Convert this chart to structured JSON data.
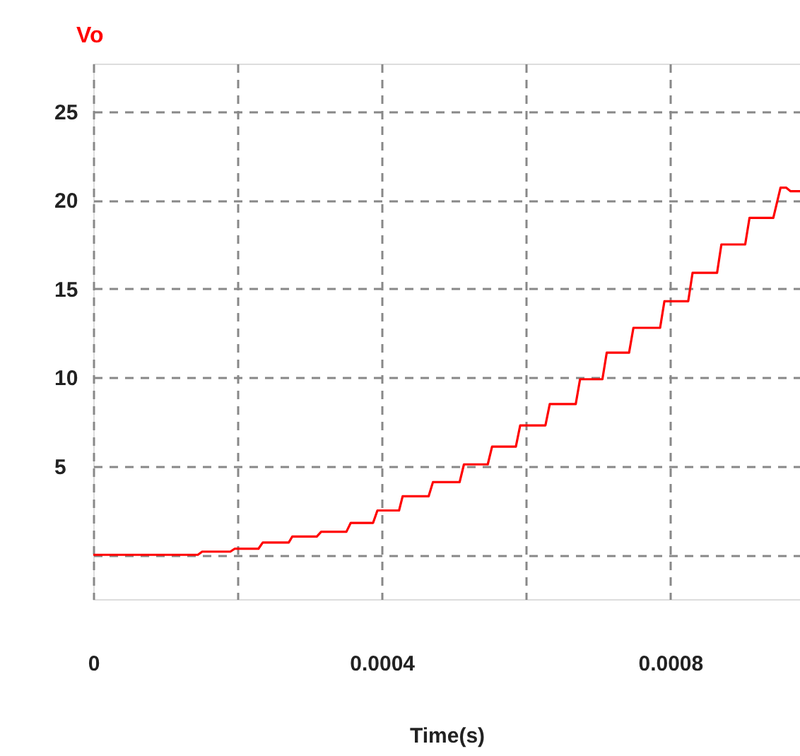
{
  "chart_data": {
    "type": "line",
    "title": "Vo",
    "xlabel": "Time(s)",
    "x": [
      0,
      0.000145,
      0.000151,
      0.00019,
      0.000196,
      0.000229,
      0.000235,
      0.000271,
      0.000276,
      0.00031,
      0.000316,
      0.000351,
      0.000357,
      0.000388,
      0.000394,
      0.000424,
      0.000429,
      0.000465,
      0.000471,
      0.000508,
      0.000514,
      0.000547,
      0.000553,
      0.000586,
      0.000592,
      0.000627,
      0.000633,
      0.000669,
      0.000675,
      0.000706,
      0.000712,
      0.000743,
      0.000749,
      0.000786,
      0.000792,
      0.000825,
      0.000831,
      0.000865,
      0.000871,
      0.000904,
      0.00091,
      0.000943,
      0.000953,
      0.000961,
      0.000967,
      0.00098
    ],
    "series": [
      {
        "color": "#ff0000",
        "values": [
          0,
          0,
          0.18,
          0.18,
          0.34,
          0.34,
          0.69,
          0.69,
          1.03,
          1.03,
          1.3,
          1.3,
          1.8,
          1.8,
          2.5,
          2.5,
          3.3,
          3.3,
          4.1,
          4.1,
          5.1,
          5.1,
          6.1,
          6.1,
          7.3,
          7.3,
          8.5,
          8.5,
          9.9,
          9.9,
          11.4,
          11.4,
          12.8,
          12.8,
          14.3,
          14.3,
          15.9,
          15.9,
          17.5,
          17.5,
          19.0,
          19.0,
          20.7,
          20.7,
          20.5,
          20.5
        ]
      }
    ],
    "xlim": [
      0,
      0.00098
    ],
    "ylim": [
      -2.5,
      27.7
    ],
    "xticks": [
      0,
      {
        "value": 0.0002,
        "label": null
      },
      0.0004,
      {
        "value": 0.0006,
        "label": null
      },
      0.0008
    ],
    "yticks": [
      {
        "value": 0,
        "label": null
      },
      5,
      10,
      15,
      20,
      25
    ],
    "grid": true,
    "marker": "none",
    "line_style": "solid"
  }
}
